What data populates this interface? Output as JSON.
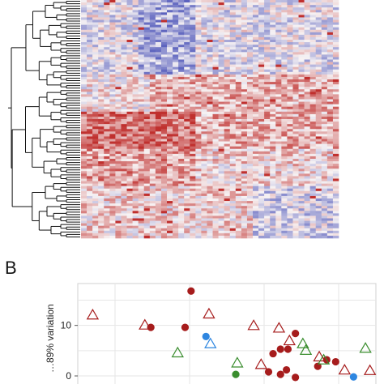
{
  "panel_b_label": "B",
  "colors": {
    "heat_low": "#4a52b8",
    "heat_mid": "#f7f3f4",
    "heat_high": "#c0302e",
    "dendrogram": "#111111",
    "dark_red": "#a61c1c",
    "green": "#3a8d2e",
    "blue": "#2e86e0",
    "grid": "#e6e6e6",
    "axis_text": "#222222"
  },
  "chart_data": [
    {
      "type": "heatmap",
      "rows": 96,
      "cols": 45,
      "row_dendrogram": true,
      "color_scale": [
        "low (blue)",
        "mid (white)",
        "high (red)"
      ]
    },
    {
      "type": "scatter",
      "ylabel": "…89% variation",
      "yticks": [
        10,
        0
      ],
      "xlim": [
        -10,
        10
      ],
      "ylim": [
        -2,
        16
      ],
      "grid": true,
      "series": [
        {
          "marker": "filled-circle",
          "color": "dark_red",
          "points": [
            [
              -2.4,
              16.8
            ],
            [
              -5.1,
              9.6
            ],
            [
              -2.8,
              9.6
            ],
            [
              4.6,
              8.4
            ],
            [
              3.6,
              5.3
            ],
            [
              4.1,
              5.3
            ],
            [
              3.1,
              4.4
            ],
            [
              6.7,
              3.2
            ],
            [
              7.3,
              2.8
            ],
            [
              4.0,
              1.2
            ],
            [
              2.8,
              0.8
            ],
            [
              3.6,
              0.3
            ],
            [
              4.6,
              -0.3
            ],
            [
              6.1,
              1.9
            ]
          ]
        },
        {
          "marker": "filled-circle",
          "color": "green",
          "points": [
            [
              0.6,
              0.3
            ]
          ]
        },
        {
          "marker": "filled-circle",
          "color": "blue",
          "points": [
            [
              -1.4,
              7.8
            ],
            [
              8.5,
              -0.2
            ]
          ]
        },
        {
          "marker": "open-triangle",
          "color": "dark_red",
          "points": [
            [
              -9.0,
              12.0
            ],
            [
              -5.5,
              10.0
            ],
            [
              -1.2,
              12.2
            ],
            [
              1.8,
              9.9
            ],
            [
              3.5,
              9.4
            ],
            [
              4.2,
              6.9
            ],
            [
              6.2,
              3.7
            ],
            [
              7.9,
              1.1
            ],
            [
              9.6,
              1.0
            ],
            [
              2.3,
              2.2
            ]
          ]
        },
        {
          "marker": "open-triangle",
          "color": "green",
          "points": [
            [
              -3.3,
              4.5
            ],
            [
              0.7,
              2.5
            ],
            [
              5.1,
              6.3
            ],
            [
              5.3,
              5.0
            ],
            [
              6.5,
              3.1
            ],
            [
              9.3,
              5.4
            ]
          ]
        },
        {
          "marker": "open-triangle",
          "color": "blue",
          "points": [
            [
              -1.1,
              6.3
            ]
          ]
        }
      ]
    }
  ]
}
